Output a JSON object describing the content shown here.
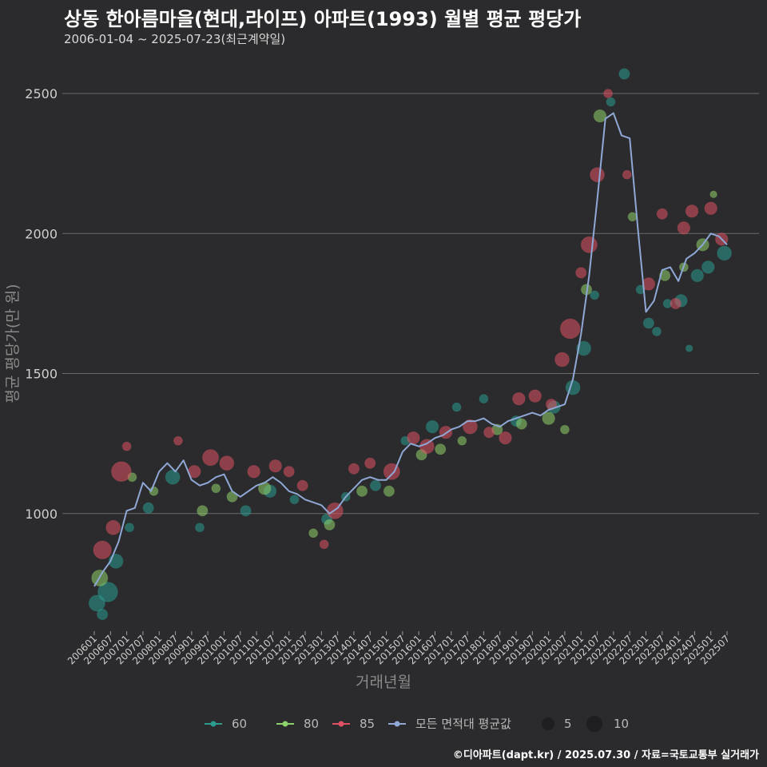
{
  "title": "상동 한아름마을(현대,라이프) 아파트(1993) 월별 평균 평당가",
  "subtitle": "2006-01-04 ~ 2025-07-23(최근계약일)",
  "footer": "©디아파트(dapt.kr) / 2025.07.30 / 자료=국토교통부 실거래가",
  "colors": {
    "background": "#2b2b2d",
    "grid": "#6b6b6b",
    "s60": "#2a9d8f",
    "s80": "#8fd16a",
    "s85": "#e05263",
    "avg": "#8fa8d6"
  },
  "chart_data": {
    "type": "scatter",
    "xlabel": "거래년월",
    "ylabel": "평균 평당가(만 원)",
    "ylim": [
      580,
      2620
    ],
    "y_ticks": [
      1000,
      1500,
      2000,
      2500
    ],
    "x_ticks": [
      "200601",
      "200607",
      "200701",
      "200707",
      "200801",
      "200807",
      "200901",
      "200907",
      "201001",
      "201007",
      "201101",
      "201107",
      "201201",
      "201207",
      "201301",
      "201307",
      "201401",
      "201407",
      "201501",
      "201507",
      "201601",
      "201607",
      "201701",
      "201707",
      "201801",
      "201807",
      "201901",
      "201907",
      "202001",
      "202007",
      "202101",
      "202107",
      "202201",
      "202207",
      "202301",
      "202307",
      "202401",
      "202407",
      "202501",
      "202507"
    ],
    "x_range": [
      "2006-01",
      "2025-07"
    ],
    "grid": true,
    "legend": {
      "placement": "bottom",
      "series": [
        {
          "key": "60",
          "label": "60",
          "color": "#2a9d8f"
        },
        {
          "key": "80",
          "label": "80",
          "color": "#8fd16a"
        },
        {
          "key": "85",
          "label": "85",
          "color": "#e05263"
        },
        {
          "key": "avg",
          "label": "모든 면적대 평균값",
          "color": "#8fa8d6"
        }
      ],
      "size_labels": [
        "5",
        "10"
      ]
    },
    "average_series": {
      "name": "모든 면적대 평균값",
      "x": [
        "2006-01",
        "2006-04",
        "2006-07",
        "2006-10",
        "2007-01",
        "2007-04",
        "2007-07",
        "2007-10",
        "2008-01",
        "2008-04",
        "2008-07",
        "2008-10",
        "2009-01",
        "2009-04",
        "2009-07",
        "2009-10",
        "2010-01",
        "2010-04",
        "2010-07",
        "2010-10",
        "2011-01",
        "2011-04",
        "2011-07",
        "2011-10",
        "2012-01",
        "2012-04",
        "2012-07",
        "2012-10",
        "2013-01",
        "2013-04",
        "2013-07",
        "2013-10",
        "2014-01",
        "2014-04",
        "2014-07",
        "2014-10",
        "2015-01",
        "2015-04",
        "2015-07",
        "2015-10",
        "2016-01",
        "2016-04",
        "2016-07",
        "2016-10",
        "2017-01",
        "2017-04",
        "2017-07",
        "2017-10",
        "2018-01",
        "2018-04",
        "2018-07",
        "2018-10",
        "2019-01",
        "2019-04",
        "2019-07",
        "2019-10",
        "2020-01",
        "2020-04",
        "2020-07",
        "2020-10",
        "2021-01",
        "2021-04",
        "2021-07",
        "2021-10",
        "2022-01",
        "2022-04",
        "2022-07",
        "2022-10",
        "2023-01",
        "2023-04",
        "2023-07",
        "2023-10",
        "2024-01",
        "2024-04",
        "2024-07",
        "2024-10",
        "2025-01",
        "2025-04",
        "2025-07"
      ],
      "y": [
        740,
        790,
        830,
        900,
        1010,
        1020,
        1110,
        1080,
        1150,
        1180,
        1150,
        1190,
        1120,
        1100,
        1110,
        1130,
        1140,
        1080,
        1060,
        1080,
        1100,
        1110,
        1130,
        1110,
        1080,
        1070,
        1050,
        1040,
        1030,
        1000,
        1020,
        1060,
        1090,
        1120,
        1130,
        1120,
        1120,
        1150,
        1220,
        1250,
        1240,
        1250,
        1270,
        1280,
        1300,
        1310,
        1330,
        1330,
        1340,
        1320,
        1310,
        1330,
        1340,
        1350,
        1360,
        1350,
        1370,
        1380,
        1390,
        1480,
        1640,
        1850,
        2120,
        2410,
        2430,
        2350,
        2340,
        2020,
        1720,
        1760,
        1870,
        1880,
        1830,
        1910,
        1930,
        1960,
        2000,
        1990,
        1960
      ]
    },
    "series": [
      {
        "name": "60",
        "points": [
          {
            "x": "2006-02",
            "y": 680,
            "s": 7
          },
          {
            "x": "2006-04",
            "y": 640,
            "s": 4
          },
          {
            "x": "2006-06",
            "y": 720,
            "s": 9
          },
          {
            "x": "2006-09",
            "y": 830,
            "s": 6
          },
          {
            "x": "2007-02",
            "y": 950,
            "s": 3
          },
          {
            "x": "2007-09",
            "y": 1020,
            "s": 4
          },
          {
            "x": "2008-06",
            "y": 1130,
            "s": 6
          },
          {
            "x": "2009-04",
            "y": 950,
            "s": 3
          },
          {
            "x": "2010-09",
            "y": 1010,
            "s": 4
          },
          {
            "x": "2011-06",
            "y": 1080,
            "s": 5
          },
          {
            "x": "2012-03",
            "y": 1050,
            "s": 3
          },
          {
            "x": "2013-03",
            "y": 980,
            "s": 4
          },
          {
            "x": "2013-10",
            "y": 1060,
            "s": 3
          },
          {
            "x": "2014-09",
            "y": 1100,
            "s": 4
          },
          {
            "x": "2015-08",
            "y": 1260,
            "s": 3
          },
          {
            "x": "2016-06",
            "y": 1310,
            "s": 5
          },
          {
            "x": "2017-03",
            "y": 1380,
            "s": 3
          },
          {
            "x": "2018-01",
            "y": 1410,
            "s": 3
          },
          {
            "x": "2019-01",
            "y": 1330,
            "s": 4
          },
          {
            "x": "2020-03",
            "y": 1380,
            "s": 5
          },
          {
            "x": "2020-10",
            "y": 1450,
            "s": 6
          },
          {
            "x": "2021-02",
            "y": 1590,
            "s": 6
          },
          {
            "x": "2021-06",
            "y": 1780,
            "s": 3
          },
          {
            "x": "2021-12",
            "y": 2470,
            "s": 3
          },
          {
            "x": "2022-05",
            "y": 2570,
            "s": 4
          },
          {
            "x": "2022-11",
            "y": 1800,
            "s": 3
          },
          {
            "x": "2023-02",
            "y": 1680,
            "s": 4
          },
          {
            "x": "2023-05",
            "y": 1650,
            "s": 3
          },
          {
            "x": "2023-09",
            "y": 1750,
            "s": 3
          },
          {
            "x": "2024-02",
            "y": 1760,
            "s": 5
          },
          {
            "x": "2024-05",
            "y": 1590,
            "s": 2
          },
          {
            "x": "2024-08",
            "y": 1850,
            "s": 5
          },
          {
            "x": "2024-12",
            "y": 1880,
            "s": 5
          },
          {
            "x": "2025-06",
            "y": 1930,
            "s": 6
          }
        ]
      },
      {
        "name": "80",
        "points": [
          {
            "x": "2006-03",
            "y": 770,
            "s": 7
          },
          {
            "x": "2007-03",
            "y": 1130,
            "s": 3
          },
          {
            "x": "2007-11",
            "y": 1080,
            "s": 3
          },
          {
            "x": "2009-05",
            "y": 1010,
            "s": 4
          },
          {
            "x": "2009-10",
            "y": 1090,
            "s": 3
          },
          {
            "x": "2010-04",
            "y": 1060,
            "s": 4
          },
          {
            "x": "2011-04",
            "y": 1090,
            "s": 5
          },
          {
            "x": "2012-10",
            "y": 930,
            "s": 3
          },
          {
            "x": "2013-04",
            "y": 960,
            "s": 4
          },
          {
            "x": "2014-04",
            "y": 1080,
            "s": 4
          },
          {
            "x": "2015-02",
            "y": 1080,
            "s": 4
          },
          {
            "x": "2016-02",
            "y": 1210,
            "s": 4
          },
          {
            "x": "2016-09",
            "y": 1230,
            "s": 4
          },
          {
            "x": "2017-05",
            "y": 1260,
            "s": 3
          },
          {
            "x": "2018-06",
            "y": 1300,
            "s": 4
          },
          {
            "x": "2019-03",
            "y": 1320,
            "s": 4
          },
          {
            "x": "2020-01",
            "y": 1340,
            "s": 5
          },
          {
            "x": "2020-07",
            "y": 1300,
            "s": 3
          },
          {
            "x": "2021-03",
            "y": 1800,
            "s": 4
          },
          {
            "x": "2021-08",
            "y": 2420,
            "s": 5
          },
          {
            "x": "2022-08",
            "y": 2060,
            "s": 3
          },
          {
            "x": "2023-08",
            "y": 1850,
            "s": 4
          },
          {
            "x": "2024-03",
            "y": 1880,
            "s": 3
          },
          {
            "x": "2024-10",
            "y": 1960,
            "s": 5
          },
          {
            "x": "2025-02",
            "y": 2140,
            "s": 2
          }
        ]
      },
      {
        "name": "85",
        "points": [
          {
            "x": "2006-04",
            "y": 870,
            "s": 8
          },
          {
            "x": "2006-08",
            "y": 950,
            "s": 6
          },
          {
            "x": "2006-11",
            "y": 1150,
            "s": 9
          },
          {
            "x": "2007-01",
            "y": 1240,
            "s": 3
          },
          {
            "x": "2008-08",
            "y": 1260,
            "s": 3
          },
          {
            "x": "2009-02",
            "y": 1150,
            "s": 5
          },
          {
            "x": "2009-08",
            "y": 1200,
            "s": 7
          },
          {
            "x": "2010-02",
            "y": 1180,
            "s": 6
          },
          {
            "x": "2010-12",
            "y": 1150,
            "s": 5
          },
          {
            "x": "2011-08",
            "y": 1170,
            "s": 5
          },
          {
            "x": "2012-01",
            "y": 1150,
            "s": 4
          },
          {
            "x": "2012-06",
            "y": 1100,
            "s": 4
          },
          {
            "x": "2013-02",
            "y": 890,
            "s": 3
          },
          {
            "x": "2013-06",
            "y": 1010,
            "s": 7
          },
          {
            "x": "2014-01",
            "y": 1160,
            "s": 4
          },
          {
            "x": "2014-07",
            "y": 1180,
            "s": 4
          },
          {
            "x": "2015-03",
            "y": 1150,
            "s": 7
          },
          {
            "x": "2015-11",
            "y": 1270,
            "s": 5
          },
          {
            "x": "2016-04",
            "y": 1240,
            "s": 6
          },
          {
            "x": "2016-11",
            "y": 1290,
            "s": 5
          },
          {
            "x": "2017-08",
            "y": 1310,
            "s": 6
          },
          {
            "x": "2018-03",
            "y": 1290,
            "s": 4
          },
          {
            "x": "2018-09",
            "y": 1270,
            "s": 5
          },
          {
            "x": "2019-02",
            "y": 1410,
            "s": 5
          },
          {
            "x": "2019-08",
            "y": 1420,
            "s": 5
          },
          {
            "x": "2020-02",
            "y": 1390,
            "s": 4
          },
          {
            "x": "2020-06",
            "y": 1550,
            "s": 6
          },
          {
            "x": "2020-09",
            "y": 1660,
            "s": 9
          },
          {
            "x": "2021-01",
            "y": 1860,
            "s": 4
          },
          {
            "x": "2021-04",
            "y": 1960,
            "s": 7
          },
          {
            "x": "2021-07",
            "y": 2210,
            "s": 6
          },
          {
            "x": "2021-11",
            "y": 2500,
            "s": 3
          },
          {
            "x": "2022-06",
            "y": 2210,
            "s": 3
          },
          {
            "x": "2023-02",
            "y": 1820,
            "s": 5
          },
          {
            "x": "2023-07",
            "y": 2070,
            "s": 4
          },
          {
            "x": "2023-12",
            "y": 1750,
            "s": 4
          },
          {
            "x": "2024-03",
            "y": 2020,
            "s": 5
          },
          {
            "x": "2024-06",
            "y": 2080,
            "s": 5
          },
          {
            "x": "2025-01",
            "y": 2090,
            "s": 5
          },
          {
            "x": "2025-05",
            "y": 1980,
            "s": 5
          }
        ]
      }
    ]
  }
}
